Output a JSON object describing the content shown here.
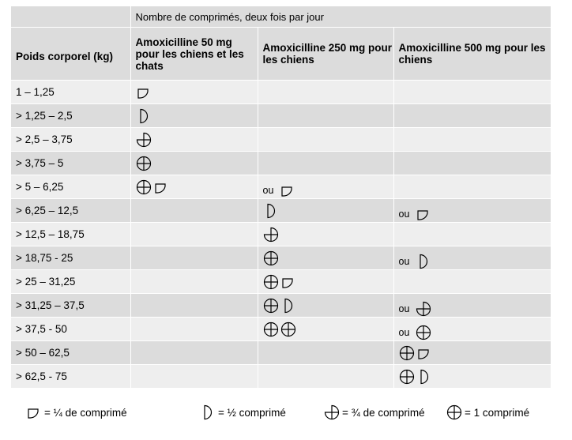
{
  "table": {
    "super_header": "Nombre de comprimés, deux fois par jour",
    "headers": [
      "Poids corporel (kg)",
      "Amoxicilline 50 mg pour les chiens et les chats",
      "Amoxicilline 250 mg pour les chiens",
      "Amoxicilline 500 mg pour les chiens"
    ],
    "rows": [
      {
        "weight": "1 – 1,25",
        "c50": {
          "ou": "",
          "syms": [
            "quarter"
          ]
        },
        "c250": {
          "ou": "",
          "syms": []
        },
        "c500": {
          "ou": "",
          "syms": []
        }
      },
      {
        "weight": "> 1,25 – 2,5",
        "c50": {
          "ou": "",
          "syms": [
            "half"
          ]
        },
        "c250": {
          "ou": "",
          "syms": []
        },
        "c500": {
          "ou": "",
          "syms": []
        }
      },
      {
        "weight": "> 2,5 – 3,75",
        "c50": {
          "ou": "",
          "syms": [
            "three"
          ]
        },
        "c250": {
          "ou": "",
          "syms": []
        },
        "c500": {
          "ou": "",
          "syms": []
        }
      },
      {
        "weight": "> 3,75 – 5",
        "c50": {
          "ou": "",
          "syms": [
            "full"
          ]
        },
        "c250": {
          "ou": "",
          "syms": []
        },
        "c500": {
          "ou": "",
          "syms": []
        }
      },
      {
        "weight": "> 5 – 6,25",
        "c50": {
          "ou": "",
          "syms": [
            "full",
            "quarter"
          ]
        },
        "c250": {
          "ou": "ou",
          "syms": [
            "quarter"
          ]
        },
        "c500": {
          "ou": "",
          "syms": []
        }
      },
      {
        "weight": "> 6,25 – 12,5",
        "c50": {
          "ou": "",
          "syms": []
        },
        "c250": {
          "ou": "",
          "syms": [
            "half"
          ]
        },
        "c500": {
          "ou": "ou",
          "syms": [
            "quarter"
          ]
        }
      },
      {
        "weight": "> 12,5 – 18,75",
        "c50": {
          "ou": "",
          "syms": []
        },
        "c250": {
          "ou": "",
          "syms": [
            "three"
          ]
        },
        "c500": {
          "ou": "",
          "syms": []
        }
      },
      {
        "weight": "> 18,75 - 25",
        "c50": {
          "ou": "",
          "syms": []
        },
        "c250": {
          "ou": "",
          "syms": [
            "full"
          ]
        },
        "c500": {
          "ou": "ou",
          "syms": [
            "half"
          ]
        }
      },
      {
        "weight": "> 25 – 31,25",
        "c50": {
          "ou": "",
          "syms": []
        },
        "c250": {
          "ou": "",
          "syms": [
            "full",
            "quarter"
          ]
        },
        "c500": {
          "ou": "",
          "syms": []
        }
      },
      {
        "weight": "> 31,25 – 37,5",
        "c50": {
          "ou": "",
          "syms": []
        },
        "c250": {
          "ou": "",
          "syms": [
            "full",
            "half"
          ]
        },
        "c500": {
          "ou": "ou",
          "syms": [
            "three"
          ]
        }
      },
      {
        "weight": "> 37,5 - 50",
        "c50": {
          "ou": "",
          "syms": []
        },
        "c250": {
          "ou": "",
          "syms": [
            "full",
            "full"
          ]
        },
        "c500": {
          "ou": "ou",
          "syms": [
            "full"
          ]
        }
      },
      {
        "weight": "> 50 – 62,5",
        "c50": {
          "ou": "",
          "syms": []
        },
        "c250": {
          "ou": "",
          "syms": []
        },
        "c500": {
          "ou": "",
          "syms": [
            "full",
            "quarter"
          ]
        }
      },
      {
        "weight": "> 62,5 - 75",
        "c50": {
          "ou": "",
          "syms": []
        },
        "c250": {
          "ou": "",
          "syms": []
        },
        "c500": {
          "ou": "",
          "syms": [
            "full",
            "half"
          ]
        }
      }
    ]
  },
  "legend": [
    {
      "sym": "quarter",
      "text": "= ¼ de comprimé"
    },
    {
      "sym": "half",
      "text": "= ½ comprimé"
    },
    {
      "sym": "three",
      "text": "= ¾ de comprimé"
    },
    {
      "sym": "full",
      "text": "= 1 comprimé"
    }
  ],
  "icons": {
    "quarter": "quarter-tablet-icon",
    "half": "half-tablet-icon",
    "three": "three-quarter-tablet-icon",
    "full": "full-tablet-icon"
  }
}
